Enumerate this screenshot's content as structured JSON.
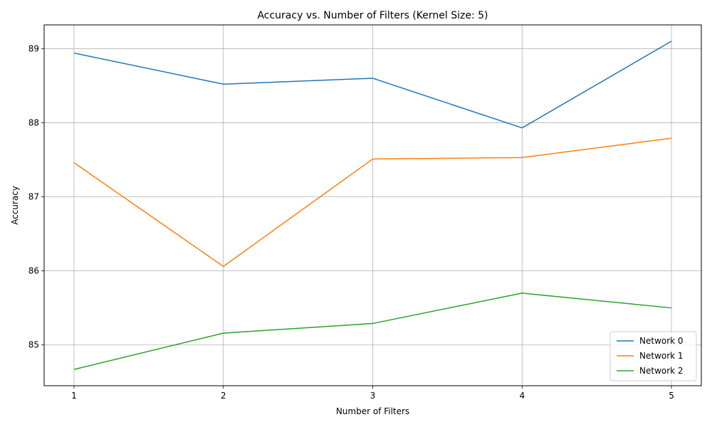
{
  "chart_data": {
    "type": "line",
    "title": "Accuracy vs. Number of Filters (Kernel Size: 5)",
    "xlabel": "Number of Filters",
    "ylabel": "Accuracy",
    "x": [
      1,
      2,
      3,
      4,
      5
    ],
    "x_ticks": [
      "1",
      "2",
      "3",
      "4",
      "5"
    ],
    "y_ticks": [
      "85",
      "86",
      "87",
      "88",
      "89"
    ],
    "xlim": [
      0.8,
      5.2
    ],
    "ylim": [
      84.45,
      89.32
    ],
    "grid": true,
    "legend_position": "lower-right",
    "series": [
      {
        "name": "Network 0",
        "color": "#1f77b4",
        "values": [
          88.94,
          88.52,
          88.6,
          87.93,
          89.1
        ]
      },
      {
        "name": "Network 1",
        "color": "#ff7f0e",
        "values": [
          87.46,
          86.06,
          87.51,
          87.53,
          87.79
        ]
      },
      {
        "name": "Network 2",
        "color": "#2ca02c",
        "values": [
          84.67,
          85.16,
          85.29,
          85.7,
          85.5
        ]
      }
    ]
  }
}
